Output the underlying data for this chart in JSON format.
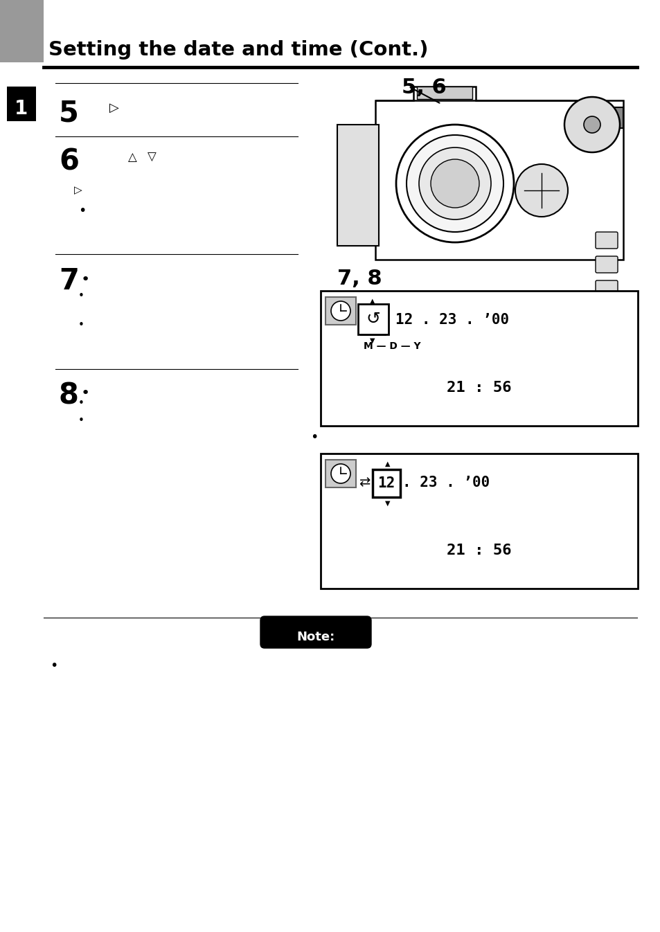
{
  "title": "Setting the date and time (Cont.)",
  "bg_color": "#ffffff",
  "text_color": "#000000",
  "step5_label": "5",
  "step6_label": "6",
  "step7_label": "7",
  "step8_label": "8",
  "section_number": "1",
  "ref_56": "5, 6",
  "ref_78": "7, 8",
  "lcd1_date": "12 . 23 . ’00",
  "lcd1_mdy": "M — D — Y",
  "lcd1_time": "21 : 56",
  "lcd2_time": "21 : 56",
  "lcd2_highlighted": "12",
  "lcd2_rest": ". 23 . ’00",
  "note_label": "Note:"
}
